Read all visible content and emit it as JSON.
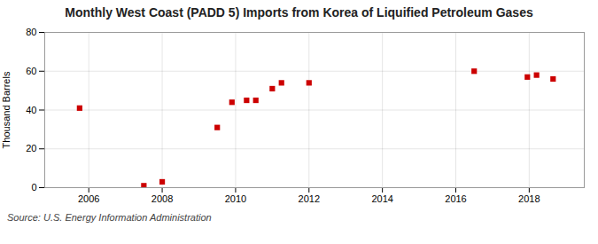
{
  "chart_data": {
    "type": "scatter",
    "title": "Monthly West Coast (PADD 5) Imports from Korea of Liquified Petroleum Gases",
    "ylabel": "Thousand Barrels",
    "caption": "Source: U.S. Energy Information Administration",
    "x": [
      2005.75,
      2007.5,
      2008.0,
      2009.5,
      2009.9,
      2010.3,
      2010.55,
      2011.0,
      2011.25,
      2012.0,
      2016.5,
      2017.95,
      2018.2,
      2018.65
    ],
    "values": [
      41,
      1,
      3,
      31,
      44,
      45,
      45,
      51,
      54,
      54,
      60,
      57,
      58,
      56
    ],
    "color": "#cc0000",
    "marker": "square",
    "xlim": [
      2004.8,
      2019.5
    ],
    "xticks": [
      2006,
      2008,
      2010,
      2012,
      2014,
      2016,
      2018
    ],
    "ylim": [
      0,
      80
    ],
    "yticks": [
      0,
      20,
      40,
      60,
      80
    ],
    "grid": true
  }
}
